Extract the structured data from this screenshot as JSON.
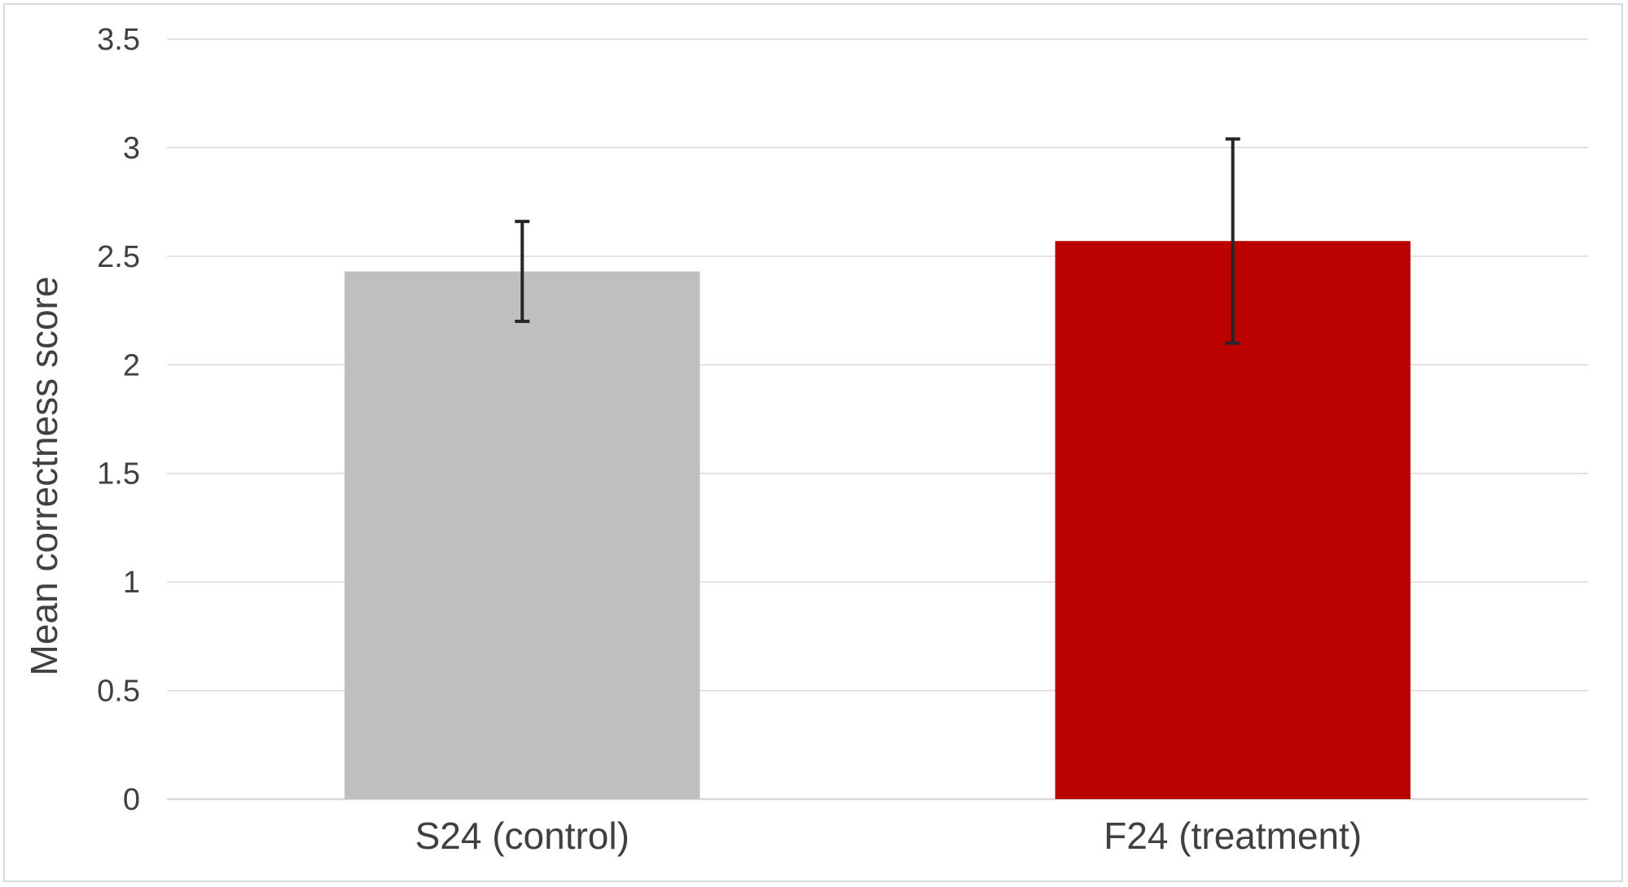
{
  "chart_data": {
    "type": "bar",
    "title": "",
    "xlabel": "",
    "ylabel": "Mean correctness score",
    "categories": [
      "S24 (control)",
      "F24 (treatment)"
    ],
    "values": [
      2.43,
      2.57
    ],
    "error_low": [
      2.2,
      2.1
    ],
    "error_high": [
      2.66,
      3.04
    ],
    "colors": [
      "#bfbfbf",
      "#bb0000"
    ],
    "ylim": [
      0,
      3.5
    ],
    "yticks": [
      0,
      0.5,
      1,
      1.5,
      2,
      2.5,
      3,
      3.5
    ],
    "ytick_labels": [
      "0",
      "0.5",
      "1",
      "1.5",
      "2",
      "2.5",
      "3",
      "3.5"
    ],
    "grid": true,
    "legend": "none",
    "gridline_color": "#d9d9d9",
    "text_color": "#404040",
    "errorbar_color": "#262626"
  }
}
